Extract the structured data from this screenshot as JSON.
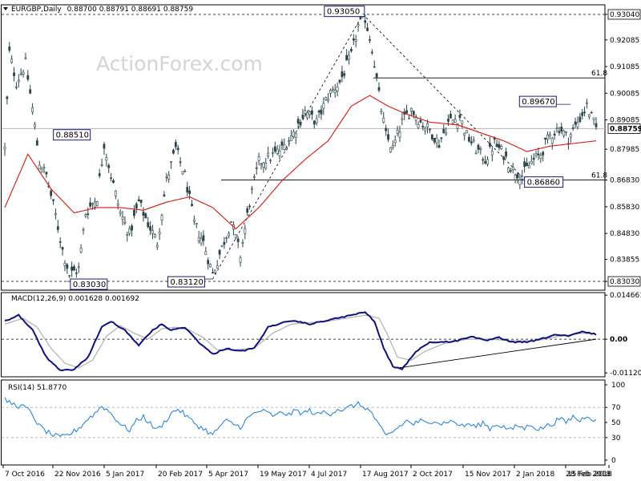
{
  "chart_data": [
    {
      "type": "candlestick",
      "panel": "price",
      "title": "EURGBP,Daily",
      "ohlc_text": "0.88700 0.88791 0.88691 0.88759",
      "watermark": "ActionForex.com",
      "ylim": [
        0.827,
        0.934
      ],
      "y_ticks": [
        "0.93040",
        "0.92085",
        "0.91085",
        "0.90085",
        "0.89085",
        "0.87985",
        "0.86830",
        "0.85830",
        "0.84830",
        "0.83855",
        "0.83030"
      ],
      "current_price": "0.88759",
      "fib_levels": [
        {
          "label": "61.8",
          "price": 0.9066
        },
        {
          "label": "61.8",
          "price": 0.8683
        }
      ],
      "annotations": [
        {
          "text": "0.93050",
          "date_index": 155,
          "price": 0.9305
        },
        {
          "text": "0.88510",
          "date_index": 37,
          "price": 0.8851
        },
        {
          "text": "0.83030",
          "date_index": 27,
          "price": 0.8303
        },
        {
          "text": "0.83120",
          "date_index": 90,
          "price": 0.8312
        },
        {
          "text": "0.86860",
          "date_index": 225,
          "price": 0.8686
        },
        {
          "text": "0.89670",
          "date_index": 245,
          "price": 0.8967
        }
      ],
      "price_waypoints": [
        [
          0,
          0.88
        ],
        [
          2,
          0.916
        ],
        [
          5,
          0.905
        ],
        [
          9,
          0.912
        ],
        [
          12,
          0.895
        ],
        [
          15,
          0.875
        ],
        [
          18,
          0.87
        ],
        [
          22,
          0.855
        ],
        [
          25,
          0.842
        ],
        [
          28,
          0.833
        ],
        [
          32,
          0.835
        ],
        [
          35,
          0.856
        ],
        [
          40,
          0.862
        ],
        [
          43,
          0.882
        ],
        [
          46,
          0.87
        ],
        [
          50,
          0.856
        ],
        [
          54,
          0.848
        ],
        [
          58,
          0.86
        ],
        [
          62,
          0.852
        ],
        [
          66,
          0.845
        ],
        [
          70,
          0.868
        ],
        [
          74,
          0.88
        ],
        [
          78,
          0.87
        ],
        [
          82,
          0.852
        ],
        [
          86,
          0.845
        ],
        [
          90,
          0.833
        ],
        [
          94,
          0.843
        ],
        [
          98,
          0.853
        ],
        [
          102,
          0.84
        ],
        [
          106,
          0.86
        ],
        [
          110,
          0.875
        ],
        [
          115,
          0.877
        ],
        [
          120,
          0.88
        ],
        [
          125,
          0.886
        ],
        [
          130,
          0.894
        ],
        [
          135,
          0.89
        ],
        [
          140,
          0.9
        ],
        [
          145,
          0.905
        ],
        [
          150,
          0.915
        ],
        [
          153,
          0.926
        ],
        [
          156,
          0.929
        ],
        [
          159,
          0.918
        ],
        [
          162,
          0.9
        ],
        [
          165,
          0.885
        ],
        [
          168,
          0.88
        ],
        [
          172,
          0.89
        ],
        [
          176,
          0.895
        ],
        [
          180,
          0.89
        ],
        [
          184,
          0.887
        ],
        [
          188,
          0.882
        ],
        [
          192,
          0.89
        ],
        [
          197,
          0.892
        ],
        [
          200,
          0.885
        ],
        [
          204,
          0.88
        ],
        [
          208,
          0.876
        ],
        [
          212,
          0.882
        ],
        [
          216,
          0.878
        ],
        [
          220,
          0.872
        ],
        [
          224,
          0.87
        ],
        [
          228,
          0.875
        ],
        [
          232,
          0.878
        ],
        [
          236,
          0.885
        ],
        [
          240,
          0.888
        ],
        [
          244,
          0.884
        ],
        [
          248,
          0.89
        ],
        [
          252,
          0.896
        ],
        [
          256,
          0.8876
        ]
      ],
      "moving_average_waypoints": [
        [
          0,
          0.858
        ],
        [
          10,
          0.878
        ],
        [
          20,
          0.865
        ],
        [
          30,
          0.856
        ],
        [
          40,
          0.858
        ],
        [
          50,
          0.858
        ],
        [
          60,
          0.857
        ],
        [
          70,
          0.86
        ],
        [
          80,
          0.862
        ],
        [
          90,
          0.858
        ],
        [
          100,
          0.85
        ],
        [
          110,
          0.858
        ],
        [
          120,
          0.868
        ],
        [
          130,
          0.876
        ],
        [
          140,
          0.883
        ],
        [
          150,
          0.896
        ],
        [
          158,
          0.9
        ],
        [
          166,
          0.896
        ],
        [
          174,
          0.893
        ],
        [
          184,
          0.89
        ],
        [
          196,
          0.889
        ],
        [
          206,
          0.886
        ],
        [
          216,
          0.883
        ],
        [
          226,
          0.879
        ],
        [
          236,
          0.881
        ],
        [
          246,
          0.882
        ],
        [
          256,
          0.883
        ]
      ],
      "x_ticks": [
        {
          "label": "7 Oct 2016",
          "index": 2
        },
        {
          "label": "22 Nov 2016",
          "index": 34
        },
        {
          "label": "5 Jan 2017",
          "index": 62
        },
        {
          "label": "20 Feb 2017",
          "index": 94
        },
        {
          "label": "5 Apr 2017",
          "index": 126
        },
        {
          "label": "19 May 2017",
          "index": 158
        },
        {
          "label": "4 Jul 2017",
          "index": 190
        },
        {
          "label": "17 Aug 2017",
          "index": 222
        },
        {
          "label": "2 Oct 2017",
          "index": 254
        },
        {
          "label": "15 Nov 2017",
          "index": 286
        },
        {
          "label": "2 Jan 2018",
          "index": 318
        },
        {
          "label": "15 Feb 2018",
          "index": 350
        },
        {
          "label": "28 Feb 2018",
          "index": 360
        }
      ]
    },
    {
      "type": "line",
      "panel": "macd",
      "title": "MACD(12,26,9) 0.001628 0.001692",
      "ylim": [
        -0.0125,
        0.0155
      ],
      "y_ticks": [
        "0.014661",
        "0.00",
        "-0.011202"
      ],
      "macd_waypoints": [
        [
          0,
          0.006
        ],
        [
          6,
          0.008
        ],
        [
          12,
          0.003
        ],
        [
          18,
          -0.006
        ],
        [
          24,
          -0.0105
        ],
        [
          30,
          -0.01
        ],
        [
          36,
          -0.006
        ],
        [
          42,
          0.004
        ],
        [
          46,
          0.006
        ],
        [
          52,
          0.003
        ],
        [
          58,
          -0.002
        ],
        [
          64,
          0.003
        ],
        [
          68,
          0.005
        ],
        [
          72,
          0.003
        ],
        [
          78,
          0.004
        ],
        [
          84,
          -0.001
        ],
        [
          90,
          -0.005
        ],
        [
          96,
          -0.003
        ],
        [
          102,
          -0.004
        ],
        [
          108,
          -0.003
        ],
        [
          114,
          0.004
        ],
        [
          120,
          0.0055
        ],
        [
          126,
          0.006
        ],
        [
          132,
          0.005
        ],
        [
          138,
          0.006
        ],
        [
          144,
          0.007
        ],
        [
          150,
          0.008
        ],
        [
          156,
          0.009
        ],
        [
          160,
          0.006
        ],
        [
          164,
          -0.003
        ],
        [
          168,
          -0.009
        ],
        [
          172,
          -0.01
        ],
        [
          178,
          -0.004
        ],
        [
          184,
          -0.001
        ],
        [
          190,
          -0.001
        ],
        [
          196,
          -0.0005
        ],
        [
          202,
          0.001
        ],
        [
          208,
          -0.0005
        ],
        [
          214,
          0.0005
        ],
        [
          220,
          -0.001
        ],
        [
          226,
          -0.001
        ],
        [
          232,
          0.0
        ],
        [
          238,
          0.0015
        ],
        [
          244,
          0.001
        ],
        [
          250,
          0.0025
        ],
        [
          256,
          0.0016
        ]
      ],
      "signal_waypoints": [
        [
          0,
          0.005
        ],
        [
          8,
          0.007
        ],
        [
          14,
          0.004
        ],
        [
          20,
          -0.003
        ],
        [
          26,
          -0.008
        ],
        [
          32,
          -0.0095
        ],
        [
          38,
          -0.007
        ],
        [
          44,
          0.001
        ],
        [
          50,
          0.0045
        ],
        [
          56,
          0.002
        ],
        [
          62,
          0.0
        ],
        [
          68,
          0.0035
        ],
        [
          74,
          0.004
        ],
        [
          80,
          0.003
        ],
        [
          86,
          0.0005
        ],
        [
          92,
          -0.0035
        ],
        [
          100,
          -0.0035
        ],
        [
          108,
          -0.003
        ],
        [
          116,
          0.002
        ],
        [
          124,
          0.005
        ],
        [
          132,
          0.0055
        ],
        [
          140,
          0.006
        ],
        [
          148,
          0.007
        ],
        [
          156,
          0.008
        ],
        [
          162,
          0.007
        ],
        [
          166,
          0.001
        ],
        [
          170,
          -0.006
        ],
        [
          176,
          -0.007
        ],
        [
          182,
          -0.004
        ],
        [
          190,
          -0.0015
        ],
        [
          200,
          0.0
        ],
        [
          210,
          0.0
        ],
        [
          220,
          -0.0005
        ],
        [
          230,
          -0.0005
        ],
        [
          240,
          0.001
        ],
        [
          250,
          0.002
        ],
        [
          256,
          0.0017
        ]
      ],
      "trendline": [
        [
          171,
          -0.0095
        ],
        [
          256,
          0.0
        ]
      ]
    },
    {
      "type": "line",
      "panel": "rsi",
      "title": "RSI(14) 51.8770",
      "ylim": [
        0,
        100
      ],
      "y_ticks": [
        "100",
        "70",
        "50",
        "30",
        "0"
      ],
      "levels": [
        70,
        30
      ],
      "rsi_waypoints": [
        [
          0,
          80
        ],
        [
          3,
          75
        ],
        [
          6,
          72
        ],
        [
          9,
          70
        ],
        [
          12,
          60
        ],
        [
          15,
          45
        ],
        [
          18,
          38
        ],
        [
          21,
          33
        ],
        [
          24,
          30
        ],
        [
          27,
          33
        ],
        [
          30,
          38
        ],
        [
          33,
          45
        ],
        [
          36,
          55
        ],
        [
          39,
          62
        ],
        [
          42,
          72
        ],
        [
          45,
          65
        ],
        [
          48,
          55
        ],
        [
          51,
          45
        ],
        [
          54,
          40
        ],
        [
          57,
          52
        ],
        [
          60,
          58
        ],
        [
          63,
          48
        ],
        [
          66,
          40
        ],
        [
          69,
          50
        ],
        [
          72,
          62
        ],
        [
          75,
          68
        ],
        [
          78,
          60
        ],
        [
          81,
          52
        ],
        [
          84,
          45
        ],
        [
          87,
          40
        ],
        [
          90,
          33
        ],
        [
          93,
          45
        ],
        [
          96,
          52
        ],
        [
          99,
          48
        ],
        [
          102,
          44
        ],
        [
          105,
          55
        ],
        [
          108,
          62
        ],
        [
          111,
          66
        ],
        [
          114,
          62
        ],
        [
          117,
          58
        ],
        [
          120,
          64
        ],
        [
          123,
          60
        ],
        [
          126,
          66
        ],
        [
          129,
          62
        ],
        [
          132,
          66
        ],
        [
          135,
          60
        ],
        [
          138,
          64
        ],
        [
          141,
          62
        ],
        [
          144,
          68
        ],
        [
          147,
          66
        ],
        [
          150,
          72
        ],
        [
          153,
          74
        ],
        [
          156,
          70
        ],
        [
          159,
          62
        ],
        [
          162,
          45
        ],
        [
          165,
          32
        ],
        [
          168,
          38
        ],
        [
          171,
          45
        ],
        [
          174,
          52
        ],
        [
          177,
          48
        ],
        [
          180,
          52
        ],
        [
          183,
          48
        ],
        [
          186,
          54
        ],
        [
          189,
          48
        ],
        [
          192,
          52
        ],
        [
          195,
          50
        ],
        [
          198,
          45
        ],
        [
          201,
          48
        ],
        [
          204,
          44
        ],
        [
          207,
          50
        ],
        [
          210,
          42
        ],
        [
          213,
          48
        ],
        [
          216,
          44
        ],
        [
          219,
          40
        ],
        [
          222,
          46
        ],
        [
          225,
          42
        ],
        [
          228,
          48
        ],
        [
          231,
          40
        ],
        [
          234,
          45
        ],
        [
          237,
          48
        ],
        [
          240,
          55
        ],
        [
          243,
          50
        ],
        [
          246,
          58
        ],
        [
          249,
          52
        ],
        [
          252,
          60
        ],
        [
          256,
          52
        ]
      ]
    }
  ]
}
